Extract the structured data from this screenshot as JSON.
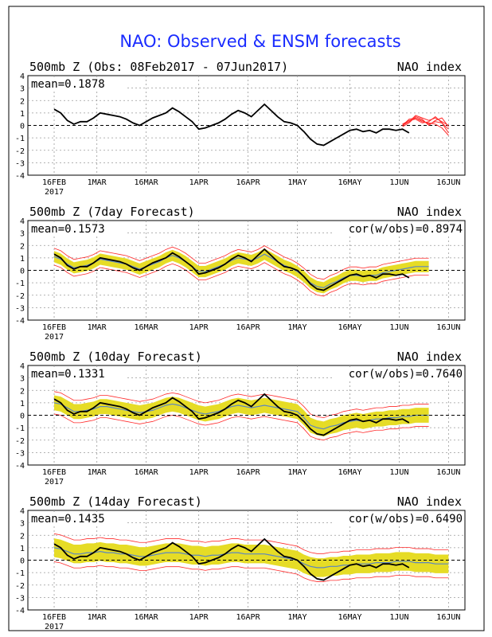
{
  "title": "NAO: Observed & ENSM forecasts",
  "colors": {
    "title": "#1a2cff",
    "observed": "#000000",
    "ensemble_band": "#e6dc26",
    "ensemble_mean": "#5b86c2",
    "members": "#ff2a2a",
    "grid": "#9a9a9a"
  },
  "y_ticks": [
    "4",
    "3",
    "2",
    "1",
    "0",
    "-1",
    "-2",
    "-3",
    "-4"
  ],
  "x_ticks": [
    "16FEB",
    "1MAR",
    "16MAR",
    "1APR",
    "16APR",
    "1MAY",
    "16MAY",
    "1JUN",
    "16JUN"
  ],
  "x_year": "2017",
  "chart_data": [
    {
      "type": "line",
      "title": "500mb Z (Obs: 08Feb2017 - 07Jun2017)",
      "right_label": "NAO index",
      "stat": "mean=0.1878",
      "corr": "",
      "ylim": [
        -4,
        4
      ],
      "x_range": [
        "08FEB2017",
        "21JUN2017"
      ],
      "series": [
        {
          "x": [
            0,
            2,
            4,
            6,
            8,
            10,
            12,
            14,
            16,
            18,
            20,
            22,
            24,
            26,
            28,
            30,
            32,
            34,
            36,
            38,
            40,
            42,
            44,
            46,
            48,
            50,
            52,
            54,
            56,
            58,
            60,
            62,
            64,
            66,
            68,
            70,
            72,
            74,
            76,
            78,
            80,
            82,
            84,
            86,
            88,
            90,
            92,
            94,
            96,
            98,
            100,
            102,
            104,
            106,
            108,
            110,
            112,
            114,
            116,
            118,
            120
          ],
          "values": [
            1.3,
            1.0,
            0.4,
            0.1,
            0.3,
            0.3,
            0.6,
            1.0,
            0.9,
            0.8,
            0.7,
            0.5,
            0.2,
            0.0,
            0.3,
            0.6,
            0.8,
            1.0,
            1.4,
            1.1,
            0.7,
            0.3,
            -0.3,
            -0.2,
            0.0,
            0.2,
            0.5,
            0.9,
            1.2,
            1.0,
            0.7,
            1.2,
            1.7,
            1.2,
            0.7,
            0.3,
            0.2,
            0.0,
            -0.5,
            -1.1,
            -1.5,
            -1.6,
            -1.3,
            -1.0,
            -0.7,
            -0.4,
            -0.3,
            -0.5,
            -0.4,
            -0.6,
            -0.3,
            -0.3,
            -0.4,
            -0.3,
            -0.6,
            null,
            null,
            null,
            null,
            null,
            null
          ]
        }
      ],
      "members_values": [
        [
          0.0,
          0.3,
          0.6,
          0.4,
          0.1,
          0.3,
          0.2,
          -0.3
        ],
        [
          0.1,
          0.4,
          0.5,
          0.2,
          0.3,
          0.7,
          0.2,
          -0.6
        ],
        [
          -0.1,
          0.2,
          0.7,
          0.5,
          0.0,
          0.4,
          0.6,
          -0.1
        ],
        [
          0.0,
          0.5,
          0.6,
          0.3,
          0.2,
          0.1,
          -0.2,
          -0.8
        ],
        [
          0.1,
          0.3,
          0.8,
          0.6,
          0.4,
          0.6,
          0.3,
          0.0
        ]
      ],
      "members_start_x": 106,
      "members_end_x": 120
    },
    {
      "type": "line",
      "title": "500mb Z (7day Forecast)",
      "right_label": "NAO index",
      "stat": "mean=0.1573",
      "corr": "cor(w/obs)=0.8974",
      "ylim": [
        -4,
        4
      ],
      "x_range": [
        "08FEB2017",
        "21JUN2017"
      ],
      "series": [
        {
          "name": "",
          "values": [
            1.3,
            1.0,
            0.4,
            0.1,
            0.3,
            0.3,
            0.6,
            1.0,
            0.9,
            0.8,
            0.7,
            0.5,
            0.2,
            0.0,
            0.3,
            0.6,
            0.8,
            1.0,
            1.4,
            1.1,
            0.7,
            0.3,
            -0.3,
            -0.2,
            0.0,
            0.2,
            0.5,
            0.9,
            1.2,
            1.0,
            0.7,
            1.2,
            1.7,
            1.2,
            0.7,
            0.3,
            0.2,
            0.0,
            -0.5,
            -1.1,
            -1.5,
            -1.6,
            -1.3,
            -1.0,
            -0.7,
            -0.4,
            -0.3,
            -0.5,
            -0.4,
            -0.6,
            -0.3,
            -0.3,
            -0.4,
            -0.3,
            -0.6,
            null,
            null,
            null,
            null,
            null,
            null
          ]
        },
        {
          "name": "",
          "values": [
            1.1,
            0.9,
            0.5,
            0.2,
            0.3,
            0.4,
            0.6,
            0.9,
            0.8,
            0.7,
            0.6,
            0.5,
            0.3,
            0.1,
            0.3,
            0.5,
            0.7,
            1.0,
            1.2,
            1.0,
            0.7,
            0.3,
            -0.1,
            -0.1,
            0.1,
            0.3,
            0.5,
            0.8,
            1.0,
            0.9,
            0.8,
            1.0,
            1.3,
            1.0,
            0.7,
            0.4,
            0.2,
            -0.1,
            -0.5,
            -1.0,
            -1.3,
            -1.4,
            -1.1,
            -0.9,
            -0.6,
            -0.4,
            -0.4,
            -0.5,
            -0.4,
            -0.4,
            -0.2,
            -0.1,
            0.0,
            0.1,
            0.2,
            0.3,
            0.3,
            0.3,
            null,
            null,
            null
          ]
        }
      ],
      "band_halfwidth": 0.45
    },
    {
      "type": "line",
      "title": "500mb Z (10day Forecast)",
      "right_label": "NAO index",
      "stat": "mean=0.1331",
      "corr": "cor(w/obs)=0.7640",
      "ylim": [
        -4,
        4
      ],
      "x_range": [
        "08FEB2017",
        "21JUN2017"
      ],
      "series": [
        {
          "name": "",
          "values": [
            1.3,
            1.0,
            0.4,
            0.1,
            0.3,
            0.3,
            0.6,
            1.0,
            0.9,
            0.8,
            0.7,
            0.5,
            0.2,
            0.0,
            0.3,
            0.6,
            0.8,
            1.0,
            1.4,
            1.1,
            0.7,
            0.3,
            -0.3,
            -0.2,
            0.0,
            0.2,
            0.5,
            0.9,
            1.2,
            1.0,
            0.7,
            1.2,
            1.7,
            1.2,
            0.7,
            0.3,
            0.2,
            0.0,
            -0.5,
            -1.1,
            -1.5,
            -1.6,
            -1.3,
            -1.0,
            -0.7,
            -0.4,
            -0.3,
            -0.5,
            -0.4,
            -0.6,
            -0.3,
            -0.3,
            -0.4,
            -0.3,
            -0.6,
            null,
            null,
            null,
            null,
            null,
            null
          ]
        },
        {
          "name": "",
          "values": [
            1.0,
            0.9,
            0.6,
            0.3,
            0.3,
            0.4,
            0.5,
            0.7,
            0.7,
            0.6,
            0.5,
            0.4,
            0.3,
            0.2,
            0.3,
            0.4,
            0.6,
            0.8,
            0.9,
            0.8,
            0.6,
            0.4,
            0.2,
            0.1,
            0.2,
            0.3,
            0.5,
            0.7,
            0.8,
            0.7,
            0.6,
            0.7,
            0.8,
            0.7,
            0.6,
            0.5,
            0.4,
            0.3,
            -0.2,
            -0.8,
            -1.0,
            -1.1,
            -0.9,
            -0.8,
            -0.6,
            -0.5,
            -0.4,
            -0.5,
            -0.4,
            -0.3,
            -0.3,
            -0.2,
            -0.2,
            -0.1,
            -0.1,
            0.0,
            0.0,
            0.0,
            null,
            null,
            null
          ]
        }
      ],
      "band_halfwidth": 0.6
    },
    {
      "type": "line",
      "title": "500mb Z (14day Forecast)",
      "right_label": "NAO index",
      "stat": "mean=0.1435",
      "corr": "cor(w/obs)=0.6490",
      "ylim": [
        -4,
        4
      ],
      "x_range": [
        "08FEB2017",
        "21JUN2017"
      ],
      "series": [
        {
          "name": "",
          "values": [
            1.3,
            1.0,
            0.4,
            0.1,
            0.3,
            0.3,
            0.6,
            1.0,
            0.9,
            0.8,
            0.7,
            0.5,
            0.2,
            0.0,
            0.3,
            0.6,
            0.8,
            1.0,
            1.4,
            1.1,
            0.7,
            0.3,
            -0.3,
            -0.2,
            0.0,
            0.2,
            0.5,
            0.9,
            1.2,
            1.0,
            0.7,
            1.2,
            1.7,
            1.2,
            0.7,
            0.3,
            0.2,
            0.0,
            -0.5,
            -1.1,
            -1.5,
            -1.6,
            -1.3,
            -1.0,
            -0.7,
            -0.4,
            -0.3,
            -0.5,
            -0.4,
            -0.6,
            -0.3,
            -0.3,
            -0.4,
            -0.3,
            -0.6,
            null,
            null,
            null,
            null,
            null,
            null
          ]
        },
        {
          "name": "",
          "values": [
            1.0,
            0.9,
            0.7,
            0.5,
            0.5,
            0.6,
            0.6,
            0.7,
            0.6,
            0.6,
            0.5,
            0.5,
            0.4,
            0.3,
            0.3,
            0.4,
            0.5,
            0.6,
            0.6,
            0.6,
            0.5,
            0.4,
            0.4,
            0.3,
            0.4,
            0.4,
            0.5,
            0.6,
            0.6,
            0.5,
            0.5,
            0.5,
            0.5,
            0.4,
            0.3,
            0.2,
            0.1,
            0.0,
            -0.3,
            -0.5,
            -0.6,
            -0.6,
            -0.5,
            -0.5,
            -0.4,
            -0.4,
            -0.3,
            -0.3,
            -0.3,
            -0.2,
            -0.2,
            -0.2,
            -0.1,
            -0.1,
            -0.1,
            -0.2,
            -0.2,
            -0.2,
            -0.3,
            -0.3,
            -0.3
          ]
        }
      ],
      "band_halfwidth": 0.75
    }
  ]
}
